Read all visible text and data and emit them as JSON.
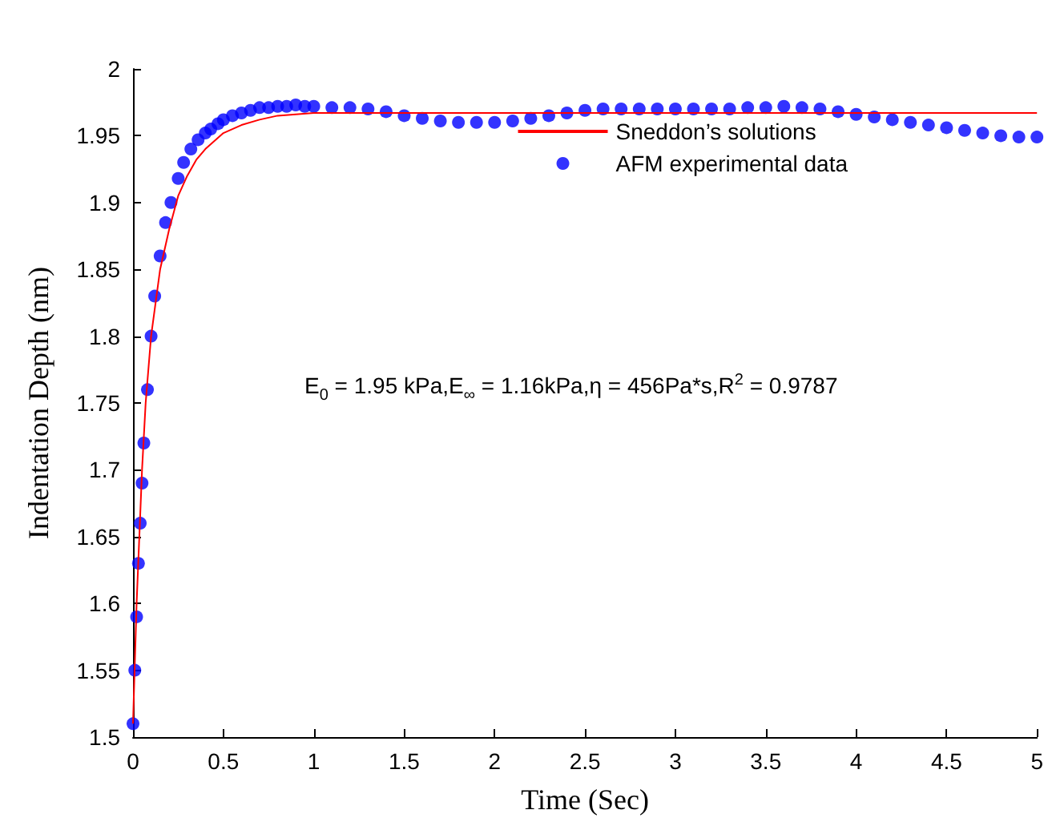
{
  "chart_data": {
    "type": "scatter",
    "xlabel": "Time (Sec)",
    "ylabel": "Indentation Depth (nm)",
    "xlim": [
      0,
      5
    ],
    "ylim": [
      1.5,
      2
    ],
    "xticks": [
      0,
      0.5,
      1,
      1.5,
      2,
      2.5,
      3,
      3.5,
      4,
      4.5,
      5
    ],
    "yticks": [
      1.5,
      1.55,
      1.6,
      1.65,
      1.7,
      1.75,
      1.8,
      1.85,
      1.9,
      1.95,
      2
    ],
    "grid": false,
    "legend": "top right",
    "marker": "circle",
    "annotations": [
      "E$_{0}$ = 1.95 kPa,E$_{∞}$ = 1.16kPa,η = 456Pa*s,R$^{2}$ = 0.9787"
    ],
    "series": [
      {
        "name": "Sneddon’s solutions",
        "type": "line",
        "marker": "none",
        "color": "#ff0000",
        "x": [
          0,
          0.02,
          0.05,
          0.07,
          0.1,
          0.15,
          0.2,
          0.25,
          0.3,
          0.35,
          0.4,
          0.45,
          0.5,
          0.6,
          0.7,
          0.8,
          1,
          1.5,
          2,
          3,
          4,
          5
        ],
        "values": [
          1.51,
          1.6,
          1.7,
          1.75,
          1.8,
          1.85,
          1.88,
          1.905,
          1.92,
          1.932,
          1.94,
          1.946,
          1.952,
          1.958,
          1.962,
          1.965,
          1.967,
          1.967,
          1.967,
          1.967,
          1.967,
          1.967
        ]
      },
      {
        "name": "AFM experimental data",
        "color": "#0000ff",
        "x": [
          0,
          0.01,
          0.02,
          0.03,
          0.04,
          0.05,
          0.06,
          0.08,
          0.1,
          0.12,
          0.15,
          0.18,
          0.21,
          0.25,
          0.28,
          0.32,
          0.36,
          0.4,
          0.43,
          0.47,
          0.5,
          0.55,
          0.6,
          0.65,
          0.7,
          0.75,
          0.8,
          0.85,
          0.9,
          0.95,
          1,
          1.1,
          1.2,
          1.3,
          1.4,
          1.5,
          1.6,
          1.7,
          1.8,
          1.9,
          2,
          2.1,
          2.2,
          2.3,
          2.4,
          2.5,
          2.6,
          2.7,
          2.8,
          2.9,
          3,
          3.1,
          3.2,
          3.3,
          3.4,
          3.5,
          3.6,
          3.7,
          3.8,
          3.9,
          4,
          4.1,
          4.2,
          4.3,
          4.4,
          4.5,
          4.6,
          4.7,
          4.8,
          4.9,
          5
        ],
        "values": [
          1.51,
          1.55,
          1.59,
          1.63,
          1.66,
          1.69,
          1.72,
          1.76,
          1.8,
          1.83,
          1.86,
          1.885,
          1.9,
          1.918,
          1.93,
          1.94,
          1.947,
          1.952,
          1.955,
          1.959,
          1.962,
          1.965,
          1.967,
          1.969,
          1.971,
          1.971,
          1.972,
          1.972,
          1.973,
          1.972,
          1.972,
          1.971,
          1.971,
          1.97,
          1.968,
          1.965,
          1.963,
          1.961,
          1.96,
          1.96,
          1.96,
          1.961,
          1.963,
          1.965,
          1.967,
          1.969,
          1.97,
          1.97,
          1.97,
          1.97,
          1.97,
          1.97,
          1.97,
          1.97,
          1.971,
          1.971,
          1.972,
          1.971,
          1.97,
          1.968,
          1.966,
          1.964,
          1.962,
          1.96,
          1.958,
          1.956,
          1.954,
          1.952,
          1.95,
          1.949,
          1.949
        ]
      }
    ]
  }
}
